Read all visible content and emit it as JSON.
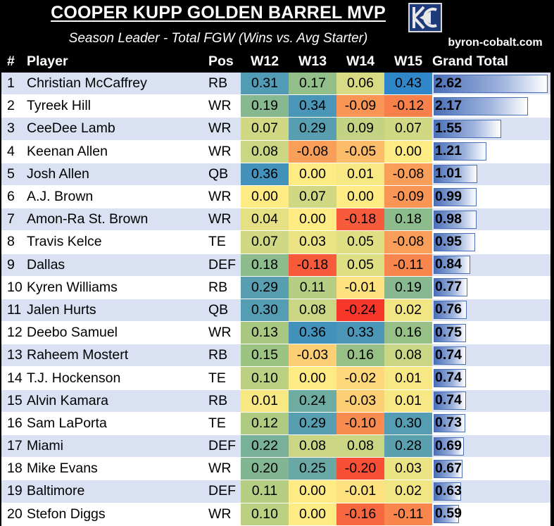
{
  "header": {
    "title": "COOPER KUPP GOLDEN BARREL MVP",
    "subtitle": "Season Leader - Total FGW (Wins vs. Avg Starter)",
    "site": "byron-cobalt.com",
    "logo_icon": "kc-logo-icon"
  },
  "columns": [
    "#",
    "Player",
    "Pos",
    "W12",
    "W13",
    "W14",
    "W15",
    "Grand Total"
  ],
  "colors": {
    "row_stripe": "#d9e1f2",
    "row_plain": "#ffffff",
    "bar": "#4a6fb8",
    "scale_low": "#f8372b",
    "scale_mid": "#ffeb84",
    "scale_high": "#2f86c8"
  },
  "max_total": 2.62,
  "rows": [
    {
      "rank": "1",
      "player": "Christian McCaffrey",
      "pos": "RB",
      "w12": "0.31",
      "w13": "0.17",
      "w14": "0.06",
      "w15": "0.43",
      "total": "2.62"
    },
    {
      "rank": "2",
      "player": "Tyreek Hill",
      "pos": "WR",
      "w12": "0.19",
      "w13": "0.34",
      "w14": "-0.09",
      "w15": "-0.12",
      "total": "2.17"
    },
    {
      "rank": "3",
      "player": "CeeDee Lamb",
      "pos": "WR",
      "w12": "0.07",
      "w13": "0.29",
      "w14": "0.09",
      "w15": "0.07",
      "total": "1.55"
    },
    {
      "rank": "4",
      "player": "Keenan Allen",
      "pos": "WR",
      "w12": "0.08",
      "w13": "-0.08",
      "w14": "-0.05",
      "w15": "0.00",
      "total": "1.21"
    },
    {
      "rank": "5",
      "player": "Josh Allen",
      "pos": "QB",
      "w12": "0.36",
      "w13": "0.00",
      "w14": "0.01",
      "w15": "-0.08",
      "total": "1.01"
    },
    {
      "rank": "6",
      "player": "A.J. Brown",
      "pos": "WR",
      "w12": "0.00",
      "w13": "0.07",
      "w14": "0.00",
      "w15": "-0.09",
      "total": "0.99"
    },
    {
      "rank": "7",
      "player": "Amon-Ra St. Brown",
      "pos": "WR",
      "w12": "0.04",
      "w13": "0.00",
      "w14": "-0.18",
      "w15": "0.18",
      "total": "0.98"
    },
    {
      "rank": "8",
      "player": "Travis Kelce",
      "pos": "TE",
      "w12": "0.07",
      "w13": "0.03",
      "w14": "0.05",
      "w15": "-0.08",
      "total": "0.95"
    },
    {
      "rank": "9",
      "player": "Dallas",
      "pos": "DEF",
      "w12": "0.18",
      "w13": "-0.18",
      "w14": "0.05",
      "w15": "-0.11",
      "total": "0.84"
    },
    {
      "rank": "10",
      "player": "Kyren Williams",
      "pos": "RB",
      "w12": "0.29",
      "w13": "0.11",
      "w14": "-0.01",
      "w15": "0.19",
      "total": "0.77"
    },
    {
      "rank": "11",
      "player": "Jalen Hurts",
      "pos": "QB",
      "w12": "0.30",
      "w13": "0.08",
      "w14": "-0.24",
      "w15": "0.02",
      "total": "0.76"
    },
    {
      "rank": "12",
      "player": "Deebo Samuel",
      "pos": "WR",
      "w12": "0.13",
      "w13": "0.36",
      "w14": "0.33",
      "w15": "0.16",
      "total": "0.75"
    },
    {
      "rank": "13",
      "player": "Raheem Mostert",
      "pos": "RB",
      "w12": "0.15",
      "w13": "-0.03",
      "w14": "0.16",
      "w15": "0.08",
      "total": "0.74"
    },
    {
      "rank": "14",
      "player": "T.J. Hockenson",
      "pos": "TE",
      "w12": "0.10",
      "w13": "0.00",
      "w14": "-0.02",
      "w15": "0.01",
      "total": "0.74"
    },
    {
      "rank": "15",
      "player": "Alvin Kamara",
      "pos": "RB",
      "w12": "0.01",
      "w13": "0.24",
      "w14": "-0.03",
      "w15": "0.01",
      "total": "0.74"
    },
    {
      "rank": "16",
      "player": "Sam LaPorta",
      "pos": "TE",
      "w12": "0.12",
      "w13": "0.29",
      "w14": "-0.10",
      "w15": "0.30",
      "total": "0.73"
    },
    {
      "rank": "17",
      "player": "Miami",
      "pos": "DEF",
      "w12": "0.22",
      "w13": "0.08",
      "w14": "0.08",
      "w15": "0.28",
      "total": "0.69"
    },
    {
      "rank": "18",
      "player": "Mike Evans",
      "pos": "WR",
      "w12": "0.20",
      "w13": "0.25",
      "w14": "-0.20",
      "w15": "0.03",
      "total": "0.67"
    },
    {
      "rank": "19",
      "player": "Baltimore",
      "pos": "DEF",
      "w12": "0.11",
      "w13": "0.00",
      "w14": "-0.01",
      "w15": "0.02",
      "total": "0.63"
    },
    {
      "rank": "20",
      "player": "Stefon Diggs",
      "pos": "WR",
      "w12": "0.10",
      "w13": "0.00",
      "w14": "-0.16",
      "w15": "-0.11",
      "total": "0.59"
    }
  ]
}
